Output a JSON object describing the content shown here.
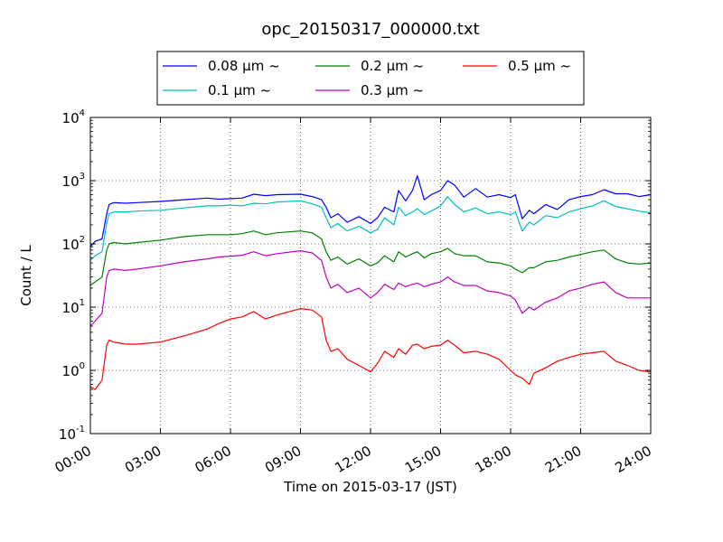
{
  "chart_data": {
    "type": "line",
    "title": "opc_20150317_000000.txt",
    "xlabel": "Time on 2015-03-17 (JST)",
    "ylabel": "Count / L",
    "xlim": [
      0,
      24
    ],
    "ylim": [
      0.1,
      10000
    ],
    "yscale": "log",
    "grid": true,
    "legend_position": "top-center (above plot)",
    "x_ticks": [
      {
        "value": 0,
        "label": "00:00"
      },
      {
        "value": 3,
        "label": "03:00"
      },
      {
        "value": 6,
        "label": "06:00"
      },
      {
        "value": 9,
        "label": "09:00"
      },
      {
        "value": 12,
        "label": "12:00"
      },
      {
        "value": 15,
        "label": "15:00"
      },
      {
        "value": 18,
        "label": "18:00"
      },
      {
        "value": 21,
        "label": "21:00"
      },
      {
        "value": 24,
        "label": "24:00"
      }
    ],
    "y_ticks": [
      {
        "value": 0.1,
        "base": "10",
        "exp": "-1"
      },
      {
        "value": 1,
        "base": "10",
        "exp": "0"
      },
      {
        "value": 10,
        "base": "10",
        "exp": "1"
      },
      {
        "value": 100,
        "base": "10",
        "exp": "2"
      },
      {
        "value": 1000,
        "base": "10",
        "exp": "3"
      },
      {
        "value": 10000,
        "base": "10",
        "exp": "4"
      }
    ],
    "series": [
      {
        "name": "0.08 μm ~",
        "color": "#0000ff",
        "x": [
          0.0,
          0.2,
          0.5,
          0.7,
          0.8,
          1.0,
          1.5,
          2.0,
          3.0,
          4.0,
          5.0,
          5.5,
          6.0,
          6.5,
          7.0,
          7.5,
          8.0,
          9.0,
          9.5,
          9.9,
          10.1,
          10.3,
          10.6,
          11.0,
          11.5,
          12.0,
          12.3,
          12.6,
          13.0,
          13.2,
          13.5,
          13.8,
          14.0,
          14.3,
          14.6,
          15.0,
          15.3,
          15.6,
          16.0,
          16.5,
          17.0,
          17.5,
          18.0,
          18.2,
          18.5,
          18.8,
          19.0,
          19.5,
          20.0,
          20.5,
          21.0,
          21.5,
          22.0,
          22.5,
          23.0,
          23.5,
          24.0
        ],
        "y": [
          90,
          110,
          120,
          300,
          420,
          450,
          440,
          450,
          470,
          500,
          530,
          510,
          520,
          530,
          610,
          580,
          600,
          610,
          560,
          500,
          380,
          260,
          300,
          220,
          270,
          210,
          260,
          380,
          320,
          700,
          480,
          700,
          1200,
          500,
          600,
          700,
          1000,
          850,
          550,
          750,
          550,
          600,
          540,
          600,
          250,
          340,
          300,
          420,
          350,
          500,
          560,
          600,
          720,
          620,
          620,
          560,
          600
        ]
      },
      {
        "name": "0.1 μm ~",
        "color": "#00bfbf",
        "x": [
          0.0,
          0.2,
          0.5,
          0.7,
          0.8,
          1.0,
          1.5,
          2.0,
          3.0,
          4.0,
          5.0,
          5.5,
          6.0,
          6.5,
          7.0,
          7.5,
          8.0,
          9.0,
          9.5,
          9.9,
          10.1,
          10.3,
          10.6,
          11.0,
          11.5,
          12.0,
          12.3,
          12.6,
          13.0,
          13.2,
          13.5,
          13.8,
          14.0,
          14.3,
          14.6,
          15.0,
          15.3,
          15.6,
          16.0,
          16.5,
          17.0,
          17.5,
          18.0,
          18.2,
          18.5,
          18.8,
          19.0,
          19.5,
          20.0,
          20.5,
          21.0,
          21.5,
          22.0,
          22.5,
          23.0,
          23.5,
          24.0
        ],
        "y": [
          55,
          65,
          75,
          210,
          300,
          320,
          320,
          330,
          340,
          370,
          400,
          400,
          410,
          400,
          440,
          430,
          460,
          480,
          430,
          380,
          260,
          180,
          210,
          160,
          190,
          150,
          170,
          260,
          200,
          380,
          280,
          320,
          360,
          290,
          330,
          400,
          560,
          420,
          320,
          370,
          300,
          320,
          290,
          320,
          160,
          220,
          200,
          280,
          260,
          320,
          360,
          400,
          480,
          390,
          360,
          330,
          310
        ]
      },
      {
        "name": "0.2 μm ~",
        "color": "#008000",
        "x": [
          0.0,
          0.2,
          0.5,
          0.7,
          0.8,
          1.0,
          1.5,
          2.0,
          3.0,
          4.0,
          5.0,
          5.5,
          6.0,
          6.5,
          7.0,
          7.5,
          8.0,
          9.0,
          9.5,
          9.9,
          10.1,
          10.3,
          10.6,
          11.0,
          11.5,
          12.0,
          12.3,
          12.6,
          13.0,
          13.2,
          13.5,
          13.8,
          14.0,
          14.3,
          14.6,
          15.0,
          15.3,
          15.6,
          16.0,
          16.5,
          17.0,
          17.5,
          18.0,
          18.2,
          18.5,
          18.8,
          19.0,
          19.5,
          20.0,
          20.5,
          21.0,
          21.5,
          22.0,
          22.5,
          23.0,
          23.5,
          24.0
        ],
        "y": [
          22,
          25,
          30,
          80,
          100,
          105,
          100,
          105,
          115,
          130,
          140,
          140,
          140,
          145,
          160,
          140,
          150,
          160,
          150,
          120,
          75,
          55,
          62,
          48,
          58,
          45,
          50,
          65,
          52,
          75,
          62,
          70,
          75,
          60,
          70,
          75,
          85,
          70,
          65,
          65,
          52,
          50,
          45,
          40,
          35,
          42,
          42,
          52,
          55,
          62,
          68,
          75,
          80,
          58,
          50,
          48,
          50
        ]
      },
      {
        "name": "0.3 μm ~",
        "color": "#bf00bf",
        "x": [
          0.0,
          0.2,
          0.5,
          0.7,
          0.8,
          1.0,
          1.5,
          2.0,
          3.0,
          4.0,
          5.0,
          5.5,
          6.0,
          6.5,
          7.0,
          7.5,
          8.0,
          9.0,
          9.5,
          9.9,
          10.1,
          10.3,
          10.6,
          11.0,
          11.5,
          12.0,
          12.3,
          12.6,
          13.0,
          13.2,
          13.5,
          13.8,
          14.0,
          14.3,
          14.6,
          15.0,
          15.3,
          15.6,
          16.0,
          16.5,
          17.0,
          17.5,
          18.0,
          18.2,
          18.5,
          18.8,
          19.0,
          19.5,
          20.0,
          20.5,
          21.0,
          21.5,
          22.0,
          22.5,
          23.0,
          23.5,
          24.0
        ],
        "y": [
          5,
          6,
          8,
          30,
          38,
          40,
          38,
          40,
          45,
          52,
          58,
          62,
          64,
          66,
          75,
          65,
          70,
          78,
          72,
          55,
          30,
          20,
          23,
          17,
          20,
          14,
          17,
          23,
          19,
          24,
          21,
          23,
          24,
          21,
          23,
          25,
          30,
          25,
          22,
          22,
          18,
          17,
          15,
          13,
          8,
          10,
          9,
          12,
          14,
          18,
          20,
          23,
          25,
          17,
          14,
          14,
          14
        ]
      },
      {
        "name": "0.5 μm ~",
        "color": "#ff0000",
        "x": [
          0.0,
          0.2,
          0.5,
          0.7,
          0.8,
          1.0,
          1.5,
          2.0,
          3.0,
          4.0,
          5.0,
          5.5,
          6.0,
          6.5,
          7.0,
          7.5,
          8.0,
          9.0,
          9.5,
          9.9,
          10.1,
          10.3,
          10.6,
          11.0,
          11.5,
          12.0,
          12.3,
          12.6,
          13.0,
          13.2,
          13.5,
          13.8,
          14.0,
          14.3,
          14.6,
          15.0,
          15.3,
          15.6,
          16.0,
          16.5,
          17.0,
          17.5,
          18.0,
          18.2,
          18.5,
          18.8,
          19.0,
          19.5,
          20.0,
          20.5,
          21.0,
          21.5,
          22.0,
          22.5,
          23.0,
          23.5,
          24.0
        ],
        "y": [
          0.55,
          0.5,
          0.7,
          2.5,
          3.0,
          2.8,
          2.6,
          2.6,
          2.8,
          3.5,
          4.5,
          5.5,
          6.5,
          7.0,
          8.5,
          6.5,
          7.5,
          9.5,
          9.0,
          7.0,
          3.0,
          2.0,
          2.2,
          1.5,
          1.2,
          0.95,
          1.3,
          2.0,
          1.6,
          2.2,
          1.8,
          2.5,
          2.6,
          2.2,
          2.4,
          2.5,
          3.0,
          2.5,
          1.9,
          2.0,
          1.8,
          1.5,
          1.0,
          0.85,
          0.75,
          0.6,
          0.9,
          1.1,
          1.4,
          1.6,
          1.8,
          1.9,
          2.0,
          1.4,
          1.2,
          1.0,
          0.95
        ]
      }
    ]
  }
}
